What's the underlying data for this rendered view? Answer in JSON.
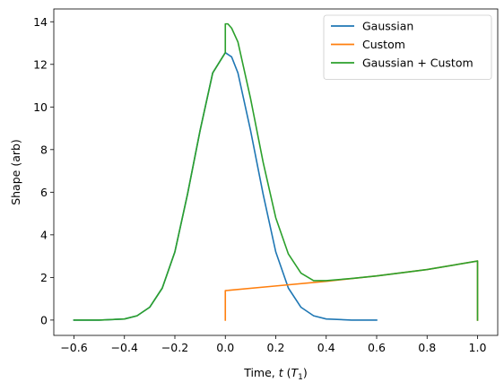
{
  "chart_data": {
    "type": "line",
    "title": "",
    "xlabel": "Time, t (T",
    "xlabel_parts": {
      "prefix": "Time, ",
      "var": "t",
      "mid": " (",
      "base": "T",
      "sub": "1",
      "suffix": ")"
    },
    "ylabel": "Shape (arb)",
    "xlim": [
      -0.68,
      1.08
    ],
    "ylim": [
      -0.72,
      14.6
    ],
    "xticks": [
      -0.6,
      -0.4,
      -0.2,
      0.0,
      0.2,
      0.4,
      0.6,
      0.8,
      1.0
    ],
    "xtick_labels": [
      "−0.6",
      "−0.4",
      "−0.2",
      "0.0",
      "0.2",
      "0.4",
      "0.6",
      "0.8",
      "1.0"
    ],
    "yticks": [
      0,
      2,
      4,
      6,
      8,
      10,
      12,
      14
    ],
    "ytick_labels": [
      "0",
      "2",
      "4",
      "6",
      "8",
      "10",
      "12",
      "14"
    ],
    "grid": false,
    "legend_position": "top-right",
    "series": [
      {
        "name": "Gaussian",
        "color": "#1f77b4",
        "x": [
          -0.6,
          -0.5,
          -0.4,
          -0.35,
          -0.3,
          -0.25,
          -0.2,
          -0.15,
          -0.1,
          -0.05,
          0.0,
          0.025,
          0.05,
          0.1,
          0.15,
          0.2,
          0.25,
          0.3,
          0.35,
          0.4,
          0.5,
          0.6
        ],
        "y": [
          0.0,
          0.0,
          0.05,
          0.2,
          0.6,
          1.5,
          3.2,
          5.9,
          8.9,
          11.6,
          12.55,
          12.35,
          11.6,
          8.9,
          5.9,
          3.2,
          1.5,
          0.6,
          0.2,
          0.05,
          0.0,
          0.0
        ]
      },
      {
        "name": "Custom",
        "color": "#ff7f0e",
        "x": [
          0.0,
          0.0,
          0.2,
          0.4,
          0.6,
          0.8,
          1.0,
          1.0
        ],
        "y": [
          0.0,
          1.38,
          1.6,
          1.82,
          2.07,
          2.37,
          2.77,
          0.0
        ]
      },
      {
        "name": "Gaussian + Custom",
        "color": "#2ca02c",
        "x": [
          -0.6,
          -0.5,
          -0.4,
          -0.35,
          -0.3,
          -0.25,
          -0.2,
          -0.15,
          -0.1,
          -0.05,
          0.0,
          0.0,
          0.01,
          0.025,
          0.05,
          0.1,
          0.15,
          0.2,
          0.25,
          0.3,
          0.35,
          0.4,
          0.5,
          0.6,
          0.8,
          1.0,
          1.0
        ],
        "y": [
          0.0,
          0.0,
          0.05,
          0.2,
          0.6,
          1.5,
          3.2,
          5.9,
          8.9,
          11.6,
          12.55,
          13.9,
          13.9,
          13.7,
          13.05,
          10.4,
          7.4,
          4.8,
          3.1,
          2.2,
          1.85,
          1.85,
          1.95,
          2.07,
          2.37,
          2.77,
          0.0
        ]
      }
    ]
  }
}
